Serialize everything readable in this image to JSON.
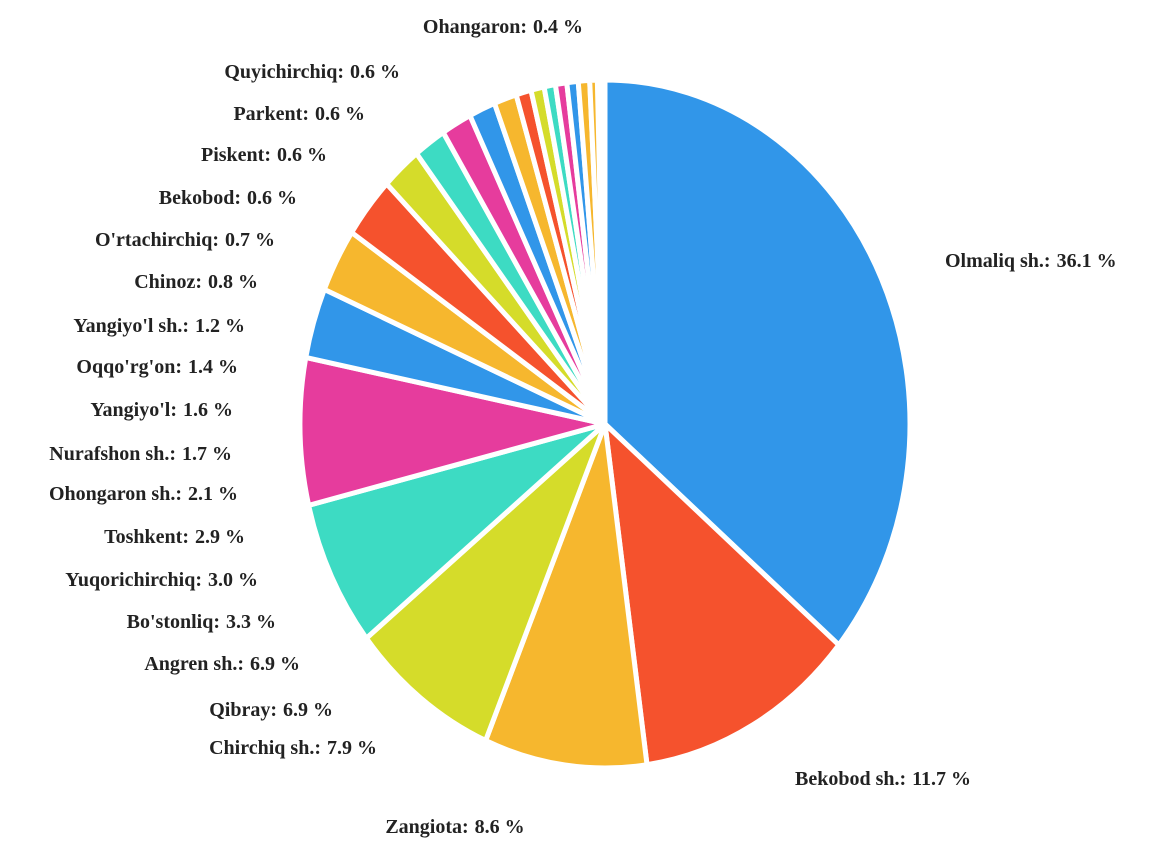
{
  "chart_data": {
    "type": "pie",
    "categories": [
      "Olmaliq sh.:",
      "Bekobod sh.:",
      "Zangiota:",
      "Chirchiq sh.:",
      "Qibray:",
      "Angren sh.:",
      "Bo'stonliq:",
      "Yuqorichirchiq:",
      "Toshkent:",
      "Ohongaron sh.:",
      "Nurafshon sh.:",
      "Yangiyo'l:",
      "Oqqo'rg'on:",
      "Yangiyo'l sh.:",
      "Chinoz:",
      "O'rtachirchiq:",
      "Bekobod:",
      "Piskent:",
      "Parkent:",
      "Quyichirchiq:",
      "Ohangaron:"
    ],
    "values": [
      36.1,
      11.7,
      8.6,
      7.9,
      6.9,
      6.9,
      3.3,
      3.0,
      2.9,
      2.1,
      1.7,
      1.6,
      1.4,
      1.2,
      0.8,
      0.7,
      0.6,
      0.6,
      0.6,
      0.6,
      0.4
    ],
    "value_labels": [
      "36.1 %",
      "11.7 %",
      "8.6 %",
      "7.9 %",
      "6.9 %",
      "6.9 %",
      "3.3 %",
      "3.0 %",
      "2.9 %",
      "2.1 %",
      "1.7 %",
      "1.6 %",
      "1.4 %",
      "1.2 %",
      "0.8 %",
      "0.7 %",
      "0.6 %",
      "0.6 %",
      "0.6 %",
      "0.6 %",
      "0.4 %"
    ],
    "colors": [
      "#3196e9",
      "#f5522d",
      "#f6b72e",
      "#d5dc2a",
      "#3ddbc3",
      "#e63c9d",
      "#3196e9",
      "#f6b72e",
      "#f5522d",
      "#d5dc2a",
      "#3ddbc3",
      "#e63c9d",
      "#3196e9",
      "#f6b72e",
      "#f5522d",
      "#d5dc2a",
      "#3ddbc3",
      "#e63c9d",
      "#3196e9",
      "#f6b72e",
      "#f6b72e"
    ]
  }
}
